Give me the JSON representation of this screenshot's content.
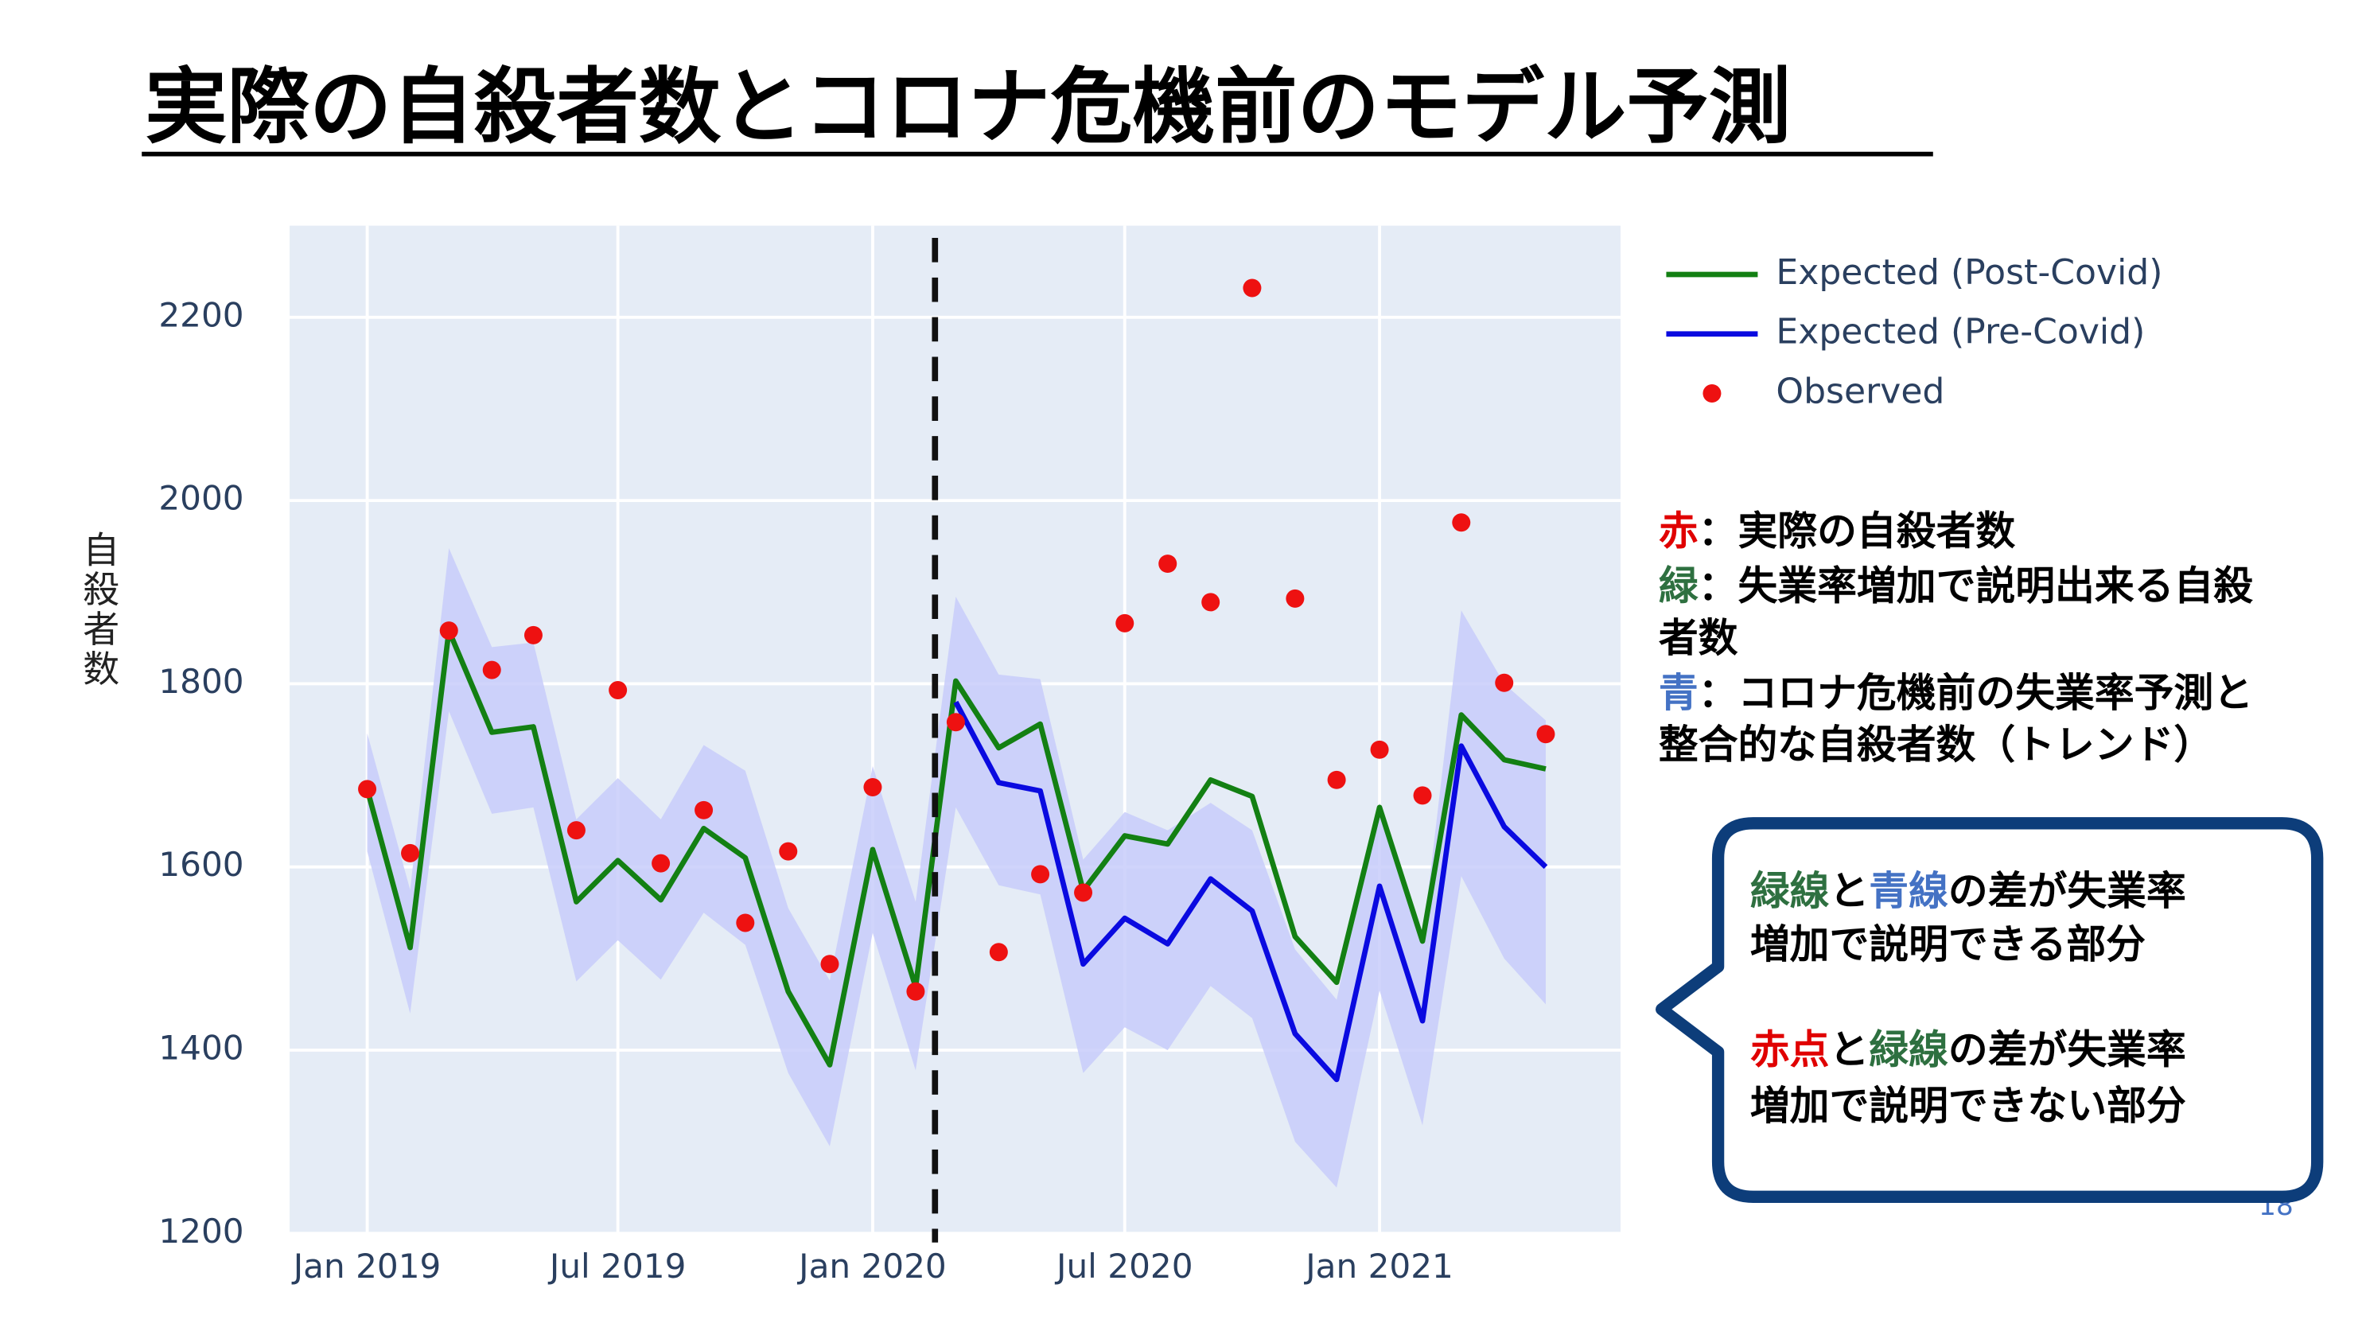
{
  "title": "実際の自殺者数とコロナ危機前のモデル予測",
  "chart_data": {
    "type": "line",
    "ylabel": "自殺者数",
    "x": [
      "2019-01",
      "2019-02",
      "2019-03",
      "2019-04",
      "2019-05",
      "2019-06",
      "2019-07",
      "2019-08",
      "2019-09",
      "2019-10",
      "2019-11",
      "2019-12",
      "2020-01",
      "2020-02",
      "2020-03",
      "2020-04",
      "2020-05",
      "2020-06",
      "2020-07",
      "2020-08",
      "2020-09",
      "2020-10",
      "2020-11",
      "2020-12",
      "2021-01",
      "2021-02",
      "2021-03",
      "2021-04",
      "2021-05"
    ],
    "series": [
      {
        "name": "Expected (Post-Covid)",
        "color": "#138013",
        "kind": "line",
        "values": [
          1685,
          1512,
          1858,
          1747,
          1753,
          1562,
          1607,
          1564,
          1642,
          1610,
          1464,
          1384,
          1619,
          1469,
          1803,
          1730,
          1756,
          1574,
          1634,
          1625,
          1695,
          1677,
          1524,
          1474,
          1665,
          1519,
          1766,
          1717,
          1707
        ]
      },
      {
        "name": "Expected (Pre-Covid)",
        "color": "#0a0ae0",
        "kind": "line",
        "values": [
          null,
          null,
          null,
          null,
          null,
          null,
          null,
          null,
          null,
          null,
          null,
          null,
          null,
          null,
          1780,
          1692,
          1683,
          1494,
          1544,
          1516,
          1587,
          1552,
          1418,
          1368,
          1579,
          1432,
          1732,
          1644,
          1600
        ]
      },
      {
        "name": "Observed",
        "color": "#ee1111",
        "kind": "markers",
        "values": [
          1685,
          1615,
          1858,
          1815,
          1853,
          1640,
          1793,
          1604,
          1662,
          1539,
          1617,
          1494,
          1687,
          1464,
          1758,
          1507,
          1592,
          1572,
          1866,
          1931,
          1889,
          2232,
          1893,
          1695,
          1728,
          1678,
          1976,
          1801,
          1745
        ]
      }
    ],
    "band": {
      "color": "#c8ccfa",
      "upper": [
        1746,
        1575,
        1948,
        1840,
        1845,
        1652,
        1697,
        1652,
        1733,
        1705,
        1555,
        1476,
        1710,
        1562,
        1895,
        1810,
        1805,
        1608,
        1660,
        1640,
        1670,
        1640,
        1510,
        1455,
        1670,
        1520,
        1880,
        1800,
        1760
      ],
      "lower": [
        1617,
        1440,
        1770,
        1658,
        1665,
        1475,
        1520,
        1477,
        1550,
        1515,
        1375,
        1295,
        1528,
        1378,
        1665,
        1580,
        1570,
        1375,
        1425,
        1400,
        1470,
        1435,
        1300,
        1250,
        1465,
        1318,
        1590,
        1500,
        1450
      ]
    },
    "vline_x": "2020-02-15",
    "xlim": [
      "2018-11-06",
      "2021-06-24"
    ],
    "xticks": [
      {
        "value": "2019-01",
        "label": "Jan 2019"
      },
      {
        "value": "2019-07",
        "label": "Jul 2019"
      },
      {
        "value": "2020-01",
        "label": "Jan 2020"
      },
      {
        "value": "2020-07",
        "label": "Jul 2020"
      },
      {
        "value": "2021-01",
        "label": "Jan 2021"
      }
    ],
    "ylim": [
      1200,
      2300
    ],
    "yticks": [
      1200,
      1400,
      1600,
      1800,
      2000,
      2200
    ],
    "grid": true,
    "legend": "right"
  },
  "notes": [
    [
      {
        "text": "赤",
        "color": "#e00000"
      },
      {
        "text": "：実際の自殺者数"
      }
    ],
    [
      {
        "text": "緑",
        "color": "#2e7040"
      },
      {
        "text": "：失業率増加で説明出来る自殺"
      }
    ],
    [
      {
        "text": "者数"
      }
    ],
    [
      {
        "text": "青",
        "color": "#4472c4"
      },
      {
        "text": "：コロナ危機前の失業率予測と"
      }
    ],
    [
      {
        "text": "整合的な自殺者数（トレンド）"
      }
    ]
  ],
  "callout": [
    [
      {
        "text": "緑線",
        "color": "#2e7040"
      },
      {
        "text": "と"
      },
      {
        "text": "青線",
        "color": "#4472c4"
      },
      {
        "text": "の差が失業率"
      }
    ],
    [
      {
        "text": "増加で説明できる部分"
      }
    ],
    [
      {
        "text": "赤点",
        "color": "#e00000"
      },
      {
        "text": "と"
      },
      {
        "text": "緑線",
        "color": "#2e7040"
      },
      {
        "text": "の差が失業率"
      }
    ],
    [
      {
        "text": "増加で説明できない部分"
      }
    ]
  ],
  "page_number": "18"
}
